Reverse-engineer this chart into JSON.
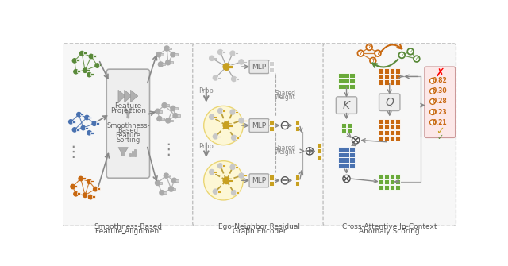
{
  "bg": "#ffffff",
  "gc": "#5a8a3a",
  "oc": "#c86810",
  "bc": "#4a72b0",
  "yn": "#c8a020",
  "grc": "#888888",
  "yb": "#fff8d0",
  "gl": "#6aaa3a",
  "scores": [
    "0.82",
    "0.30",
    "0.28",
    "0.23",
    "0.21"
  ],
  "panel1_cap1": "Smoothness-Based",
  "panel1_cap2": "Feature Alignment",
  "panel2_cap1": "Ego-Neighbor Residual",
  "panel2_cap2": "Graph Encoder",
  "panel3_cap1": "Cross-Attentive In-Context",
  "panel3_cap2": "Anomaly Scoring"
}
